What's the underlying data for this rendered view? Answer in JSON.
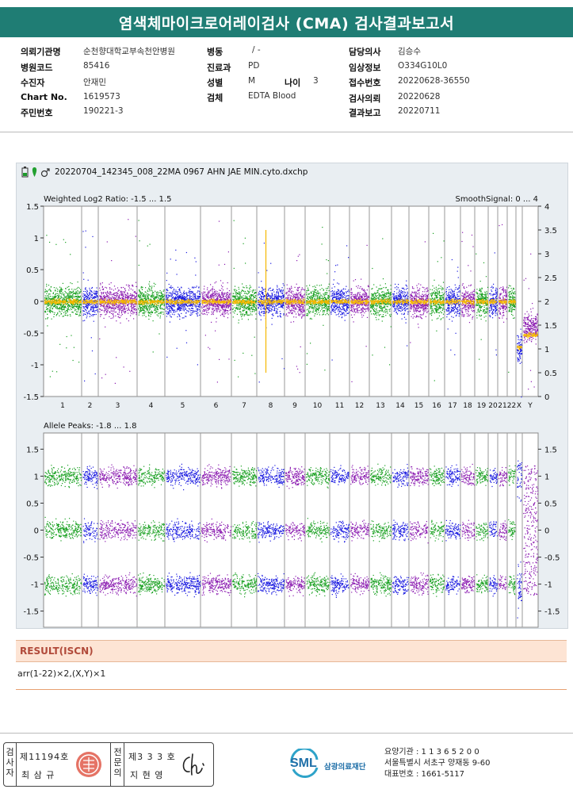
{
  "header": {
    "title": "염색체마이크로어레이검사 (CMA) 검사결과보고서"
  },
  "info": {
    "col1": [
      {
        "label": "의뢰기관명",
        "value": "순천향대학교부속천안병원"
      },
      {
        "label": "병원코드",
        "value": "85416"
      },
      {
        "label": "수진자",
        "value": "안재민"
      },
      {
        "label": "Chart No.",
        "value": "1619573"
      },
      {
        "label": "주민번호",
        "value": "190221-3"
      }
    ],
    "col2": [
      {
        "label": "병동",
        "value": "/ -"
      },
      {
        "label": "진료과",
        "value": "PD"
      },
      {
        "label": "성별",
        "value": "M"
      },
      {
        "label": "검체",
        "value": "EDTA Blood"
      }
    ],
    "age": {
      "label": "나이",
      "value": "3"
    },
    "col3": [
      {
        "label": "담당의사",
        "value": "김승수"
      },
      {
        "label": "임상정보",
        "value": "O334G10L0"
      },
      {
        "label": "접수번호",
        "value": "20220628-36550"
      },
      {
        "label": "검사의뢰",
        "value": "20220628"
      },
      {
        "label": "결과보고",
        "value": "20220711"
      }
    ]
  },
  "plot": {
    "filename": "20220704_142345_008_22MA 0967 AHN JAE MIN.cyto.dxchp",
    "top_title": "Weighted Log2 Ratio: -1.5 ... 1.5",
    "top_right_title": "SmoothSignal: 0 ... 4",
    "bottom_title": "Allele Peaks: -1.8 ... 1.8",
    "top_left_ticks": [
      "1.5",
      "1",
      "0.5",
      "0",
      "-0.5",
      "-1",
      "-1.5"
    ],
    "top_right_ticks": [
      "4",
      "3.5",
      "3",
      "2.5",
      "2",
      "1.5",
      "1",
      "0.5",
      "0"
    ],
    "bottom_left_ticks": [
      "1.5",
      "1",
      "0.5",
      "0",
      "-0.5",
      "-1",
      "-1.5"
    ],
    "bottom_right_ticks": [
      "1.5",
      "1",
      "0.5",
      "0",
      "-0.5",
      "-1",
      "-1.5"
    ],
    "chromosomes": [
      "1",
      "2",
      "3",
      "4",
      "5",
      "6",
      "7",
      "8",
      "9",
      "10",
      "11",
      "12",
      "13",
      "14",
      "15",
      "16",
      "17",
      "18",
      "19",
      "20",
      "21",
      "22",
      "X",
      "Y"
    ],
    "colors": {
      "green": "#18a020",
      "blue": "#1a1ae0",
      "purple": "#8a1ab0",
      "yellow": "#f5b800"
    }
  },
  "result": {
    "heading": "RESULT(ISCN)",
    "text": "arr(1-22)×2,(X,Y)×1"
  },
  "signature": {
    "col1_label_chars": [
      "검",
      "사",
      "자"
    ],
    "col1_no": "제11194호",
    "col1_name": "최 삼 규",
    "col2_label_chars": [
      "전",
      "문",
      "의"
    ],
    "col2_no": "제3 3 3 호",
    "col2_name": "지 현 영"
  },
  "corp": {
    "logo_text": "SML",
    "logo_subtext": "삼광의료재단",
    "line1": "요양기관 : 1 1 3 6 5 2 0 0",
    "line2": "서울특별시 서초구 양재동 9-60",
    "line3": "대표번호 : 1661-5117"
  }
}
